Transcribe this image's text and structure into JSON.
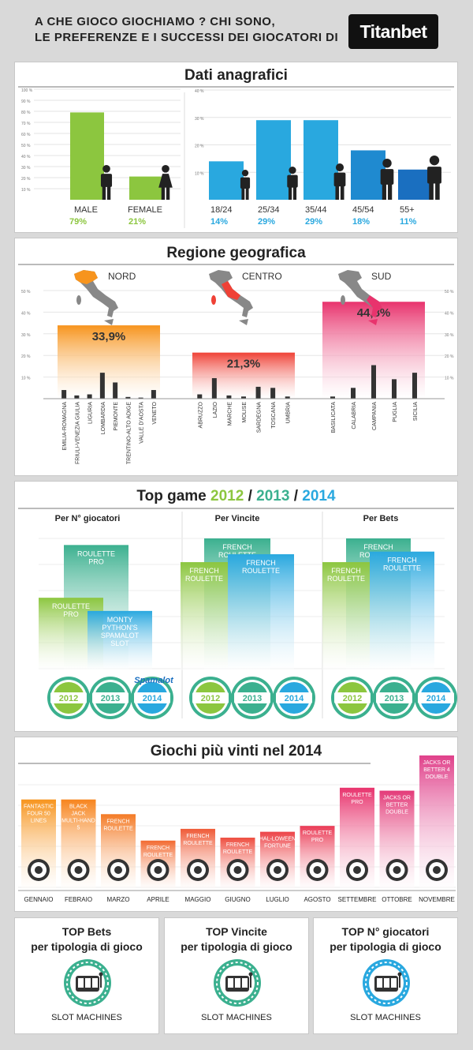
{
  "header": {
    "title_line1": "A CHE GIOCO GIOCHIAMO ? CHI SONO,",
    "title_line2": "LE PREFERENZE E I SUCCESSI DEI GIOCATORI DI",
    "logo": "Titanbet"
  },
  "colors": {
    "green": "#8cc63f",
    "teal": "#3bb08f",
    "blue": "#29a8df",
    "orange": "#f7941d",
    "red": "#ef4136",
    "pink": "#e8336d"
  },
  "chart_data": [
    {
      "type": "bar",
      "title": "Dati anagrafici",
      "categories": [
        "MALE",
        "FEMALE"
      ],
      "values": [
        79,
        21
      ],
      "value_labels": [
        "79%",
        "21%"
      ],
      "ytick_labels": [
        "100 %",
        "90 %",
        "80 %",
        "70 %",
        "60 %",
        "50 %",
        "40 %",
        "30 %",
        "20 %",
        "10 %"
      ],
      "ylim": [
        0,
        100
      ]
    },
    {
      "type": "bar",
      "categories": [
        "18/24",
        "25/34",
        "35/44",
        "45/54",
        "55+"
      ],
      "values": [
        14,
        29,
        29,
        18,
        11
      ],
      "value_labels": [
        "14%",
        "29%",
        "29%",
        "18%",
        "11%"
      ],
      "ytick_labels": [
        "40 %",
        "30 %",
        "20 %",
        "10 %"
      ],
      "ylim": [
        0,
        40
      ]
    },
    {
      "type": "bar",
      "title": "Regione geografica",
      "categories": [
        "NORD",
        "CENTRO",
        "SUD"
      ],
      "values": [
        33.9,
        21.3,
        44.8
      ],
      "value_labels": [
        "33,9%",
        "21,3%",
        "44,8%"
      ],
      "ytick_labels": [
        "50 %",
        "40 %",
        "30 %",
        "20 %",
        "10 %"
      ],
      "ylim": [
        0,
        50
      ],
      "regions": [
        {
          "name": "NORD",
          "sub_categories": [
            "EMILIA-ROMAGNA",
            "FRIULI-VENEZIA GIULIA",
            "LIGURIA",
            "LOMBARDIA",
            "PIEMONTE",
            "TRENTINO-ALTO ADIGE",
            "VALLE D'AOSTA",
            "VENETO"
          ],
          "values": [
            4,
            1.5,
            2,
            12,
            7.5,
            0.8,
            0.5,
            4
          ]
        },
        {
          "name": "CENTRO",
          "sub_categories": [
            "ABRUZZO",
            "LAZIO",
            "MARCHE",
            "MOLISE",
            "SARDEGNA",
            "TOSCANA",
            "UMBRIA"
          ],
          "values": [
            2,
            9.5,
            1.5,
            1,
            5.5,
            5,
            1
          ]
        },
        {
          "name": "SUD",
          "sub_categories": [
            "BASILICATA",
            "CALABRIA",
            "CAMPANIA",
            "PUGLIA",
            "SICILIA"
          ],
          "values": [
            1,
            5,
            15.5,
            9,
            12
          ]
        }
      ]
    },
    {
      "type": "bar",
      "title_parts": [
        "Top game ",
        "2012",
        " / ",
        "2013",
        " / ",
        "2014"
      ],
      "groups": [
        {
          "name": "Per N° giocatori",
          "bars": [
            {
              "year": "2012",
              "label": "ROULETTE PRO",
              "value": 55
            },
            {
              "year": "2013",
              "label": "ROULETTE PRO",
              "value": 95
            },
            {
              "year": "2014",
              "label": "MONTY PYTHON'S SPAMALOT SLOT",
              "value": 45
            }
          ],
          "badges": [
            "2012",
            "2013",
            "2014"
          ],
          "badge_caption": "Spamalot"
        },
        {
          "name": "Per Vincite",
          "bars": [
            {
              "year": "2012",
              "label": "FRENCH ROULETTE",
              "value": 82
            },
            {
              "year": "2013",
              "label": "FRENCH ROULETTE",
              "value": 100
            },
            {
              "year": "2014",
              "label": "FRENCH ROULETTE",
              "value": 88
            }
          ],
          "badges": [
            "2012",
            "2013",
            "2014"
          ]
        },
        {
          "name": "Per Bets",
          "bars": [
            {
              "year": "2012",
              "label": "FRENCH ROULETTE",
              "value": 82
            },
            {
              "year": "2013",
              "label": "FRENCH ROULETTE",
              "value": 100
            },
            {
              "year": "2014",
              "label": "FRENCH ROULETTE",
              "value": 90
            }
          ],
          "badges": [
            "2012",
            "2013",
            "2014"
          ]
        }
      ]
    },
    {
      "type": "bar",
      "title": "Giochi più vinti nel 2014",
      "categories": [
        "GENNAIO",
        "FEBRAIO",
        "MARZO",
        "APRILE",
        "MAGGIO",
        "GIUGNO",
        "LUGLIO",
        "AGOSTO",
        "SETTEMBRE",
        "OTTOBRE",
        "NOVEMBRE"
      ],
      "values": [
        62,
        62,
        52,
        34,
        42,
        36,
        40,
        44,
        70,
        68,
        92
      ],
      "game_labels": [
        "FANTASTIC FOUR 50 LINES",
        "BLACK JACK MULTI-HAND 5",
        "FRENCH ROULETTE",
        "FRENCH ROULETTE",
        "FRENCH ROULETTE",
        "FRENCH ROULETTE",
        "HAL-LOWEEN FORTUNE",
        "ROULETTE PRO",
        "ROULETTE PRO",
        "JACKS OR BETTER DOUBLE",
        "JACKS OR BETTER 4 DOUBLE"
      ]
    }
  ],
  "bottom": [
    {
      "title_line1": "TOP Bets",
      "title_line2": "per tipologia di gioco",
      "value": "SLOT MACHINES",
      "color": "#3bb08f"
    },
    {
      "title_line1": "TOP Vincite",
      "title_line2": "per tipologia di gioco",
      "value": "SLOT MACHINES",
      "color": "#3bb08f"
    },
    {
      "title_line1": "TOP N° giocatori",
      "title_line2": "per tipologia di gioco",
      "value": "SLOT MACHINES",
      "color": "#29a8df"
    }
  ]
}
